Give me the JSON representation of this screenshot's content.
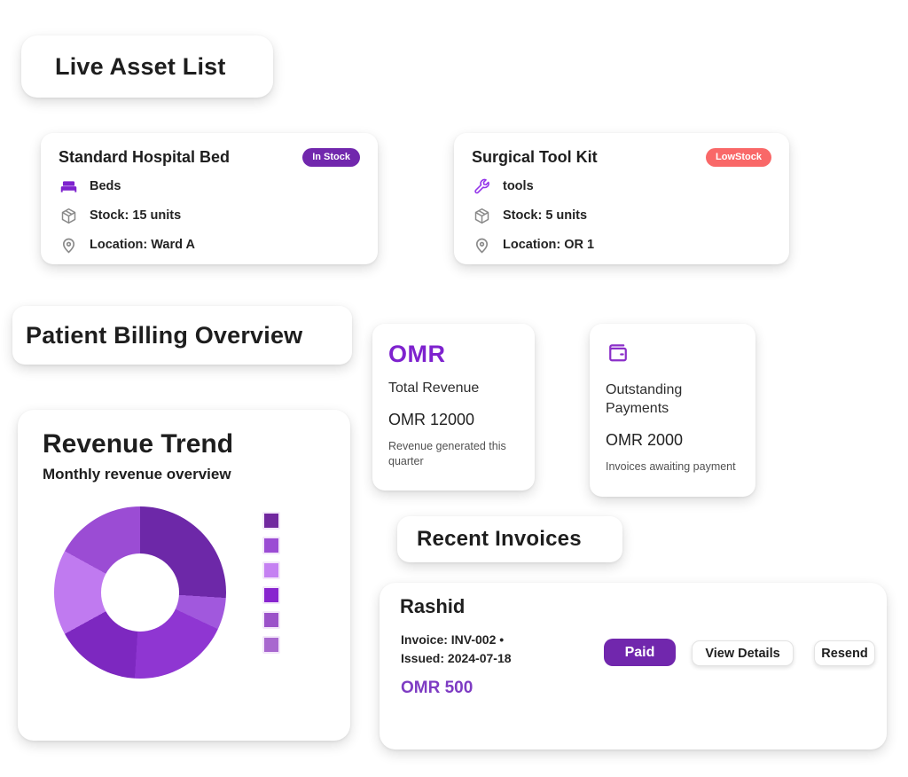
{
  "asset_section": {
    "title": "Live Asset List",
    "assets": [
      {
        "name": "Standard Hospital Bed",
        "badge": "In Stock",
        "badge_color": "#7127ad",
        "category": "Beds",
        "category_icon": "bed-icon",
        "stock": "Stock: 15 units",
        "location": "Location: Ward A"
      },
      {
        "name": "Surgical Tool Kit",
        "badge": "LowStock",
        "badge_color": "#f96868",
        "category": "tools",
        "category_icon": "wrench-icon",
        "stock": "Stock: 5 units",
        "location": "Location: OR 1"
      }
    ]
  },
  "billing_section": {
    "title": "Patient Billing Overview",
    "stats": [
      {
        "icon_text": "OMR",
        "label": "Total Revenue",
        "value": "OMR 12000",
        "description": "Revenue generated this quarter"
      },
      {
        "icon": "wallet-icon",
        "label": "Outstanding Payments",
        "value": "OMR 2000",
        "description": "Invoices awaiting payment"
      }
    ]
  },
  "chart_data": {
    "type": "pie",
    "donut": true,
    "title": "Revenue Trend",
    "subtitle": "Monthly revenue overview",
    "legend_position": "right",
    "labels_visible": false,
    "inner_radius_pct": 45,
    "segments": [
      {
        "value": 26,
        "color": "#6d28a8"
      },
      {
        "value": 6,
        "color": "#a158dd"
      },
      {
        "value": 19,
        "color": "#8f36d2"
      },
      {
        "value": 16,
        "color": "#7d28c0"
      },
      {
        "value": 16,
        "color": "#c07af0"
      },
      {
        "value": 17,
        "color": "#9b4cd4"
      }
    ],
    "legend_colors": [
      "#71279f",
      "#9b4cd4",
      "#c580f2",
      "#8824cf",
      "#9b51c9",
      "#a868cf"
    ]
  },
  "invoices_section": {
    "title": "Recent Invoices",
    "invoices": [
      {
        "patient": "Rashid",
        "meta_line1": "Invoice: INV-002 •",
        "meta_line2": "Issued: 2024-07-18",
        "amount": "OMR 500",
        "status": "Paid",
        "status_color": "#7127ad",
        "view_details_label": "View Details",
        "resend_label": "Resend"
      }
    ]
  }
}
